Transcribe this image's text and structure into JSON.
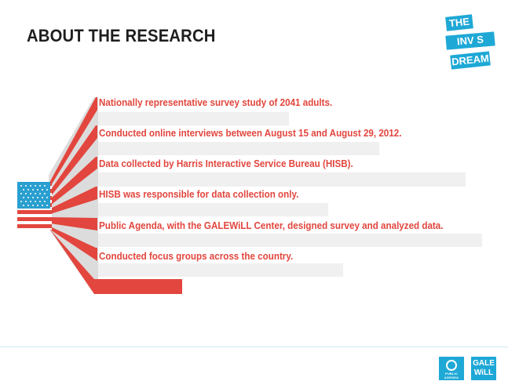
{
  "header": {
    "title": "ABOUT THE RESEARCH"
  },
  "logo": {
    "line1": "THE",
    "line2": "INV S BLE",
    "line3": "DREAM",
    "color": "#1ea8d6"
  },
  "items": [
    "Nationally representative survey study of 2041 adults.",
    "Conducted online interviews  between August 15 and August 29, 2012.",
    "Data collected by Harris Interactive Service Bureau (HISB).",
    "HISB was responsible for data collection only.",
    "Public Agenda, with the GALEWiLL Center, designed survey and analyzed data.",
    "Conducted focus groups across the country."
  ],
  "footer": {
    "public_agenda_label": "PUBLIC AGENDA",
    "galewill_line1": "GALE",
    "galewill_line2": "WiLL"
  },
  "colors": {
    "accent_red": "#e2463e",
    "flag_blue": "#1ea8d6",
    "band_gray": "#f0f0f0"
  }
}
